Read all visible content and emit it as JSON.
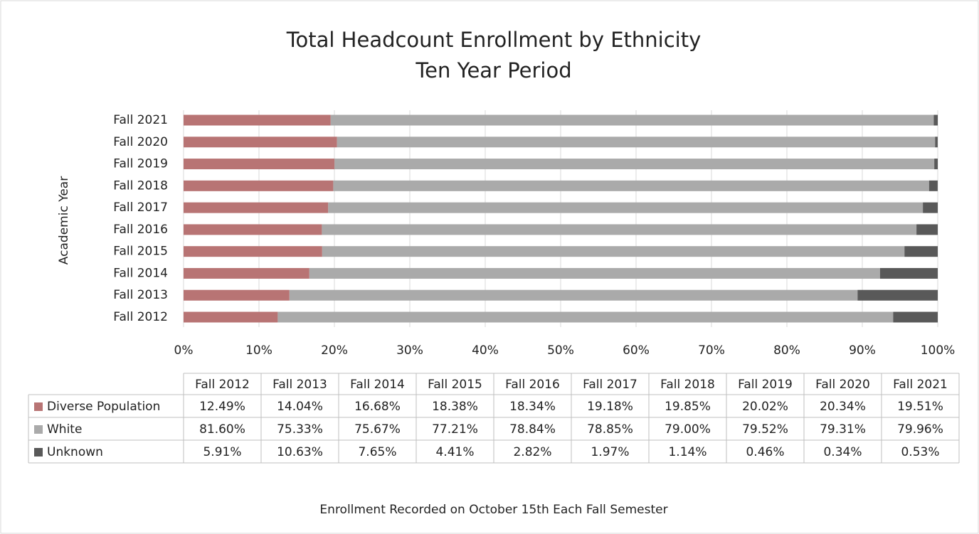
{
  "chart_data": {
    "type": "bar",
    "orientation": "horizontal",
    "stacked": true,
    "title": "Total Headcount Enrollment by Ethnicity",
    "subtitle": "Ten Year Period",
    "ylabel": "Academic Year",
    "footnote": "Enrollment Recorded on October 15th Each Fall Semester",
    "categories": [
      "Fall 2012",
      "Fall 2013",
      "Fall 2014",
      "Fall 2015",
      "Fall 2016",
      "Fall 2017",
      "Fall 2018",
      "Fall 2019",
      "Fall 2020",
      "Fall 2021"
    ],
    "series": [
      {
        "name": "Diverse Population",
        "color": "#b87474",
        "values": [
          12.49,
          14.04,
          16.68,
          18.38,
          18.34,
          19.18,
          19.85,
          20.02,
          20.34,
          19.51
        ],
        "value_labels": [
          "12.49%",
          "14.04%",
          "16.68%",
          "18.38%",
          "18.34%",
          "19.18%",
          "19.85%",
          "20.02%",
          "20.34%",
          "19.51%"
        ]
      },
      {
        "name": "White",
        "color": "#aaaaaa",
        "values": [
          81.6,
          75.33,
          75.67,
          77.21,
          78.84,
          78.85,
          79.0,
          79.52,
          79.31,
          79.96
        ],
        "value_labels": [
          "81.60%",
          "75.33%",
          "75.67%",
          "77.21%",
          "78.84%",
          "78.85%",
          "79.00%",
          "79.52%",
          "79.31%",
          "79.96%"
        ]
      },
      {
        "name": "Unknown",
        "color": "#595959",
        "values": [
          5.91,
          10.63,
          7.65,
          4.41,
          2.82,
          1.97,
          1.14,
          0.46,
          0.34,
          0.53
        ],
        "value_labels": [
          "5.91%",
          "10.63%",
          "7.65%",
          "4.41%",
          "2.82%",
          "1.97%",
          "1.14%",
          "0.46%",
          "0.34%",
          "0.53%"
        ]
      }
    ],
    "xlim": [
      0,
      100
    ],
    "xticks": [
      {
        "value": 0,
        "label": "0%"
      },
      {
        "value": 10,
        "label": "10%"
      },
      {
        "value": 20,
        "label": "20%"
      },
      {
        "value": 30,
        "label": "30%"
      },
      {
        "value": 40,
        "label": "40%"
      },
      {
        "value": 50,
        "label": "50%"
      },
      {
        "value": 60,
        "label": "60%"
      },
      {
        "value": 70,
        "label": "70%"
      },
      {
        "value": 80,
        "label": "80%"
      },
      {
        "value": 90,
        "label": "90%"
      },
      {
        "value": 100,
        "label": "100%"
      }
    ],
    "grid": true
  }
}
